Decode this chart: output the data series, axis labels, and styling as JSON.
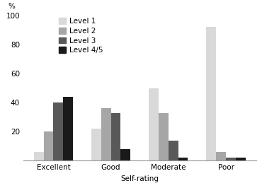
{
  "categories": [
    "Excellent",
    "Good",
    "Moderate",
    "Poor"
  ],
  "series": {
    "Level 1": [
      6,
      22,
      50,
      92
    ],
    "Level 2": [
      20,
      36,
      33,
      6
    ],
    "Level 3": [
      40,
      33,
      14,
      2
    ],
    "Level 4/5": [
      44,
      8,
      2,
      2
    ]
  },
  "colors": {
    "Level 1": "#d9d9d9",
    "Level 2": "#a6a6a6",
    "Level 3": "#595959",
    "Level 4/5": "#1a1a1a"
  },
  "legend_labels": [
    "Level 1",
    "Level 2",
    "Level 3",
    "Level 4/5"
  ],
  "xlabel": "Self-rating",
  "ylabel": "%",
  "ylim": [
    0,
    100
  ],
  "yticks": [
    0,
    20,
    40,
    60,
    80,
    100
  ],
  "axis_fontsize": 7.5,
  "legend_fontsize": 7.5,
  "bar_width": 0.17,
  "bg_color": "#ffffff"
}
